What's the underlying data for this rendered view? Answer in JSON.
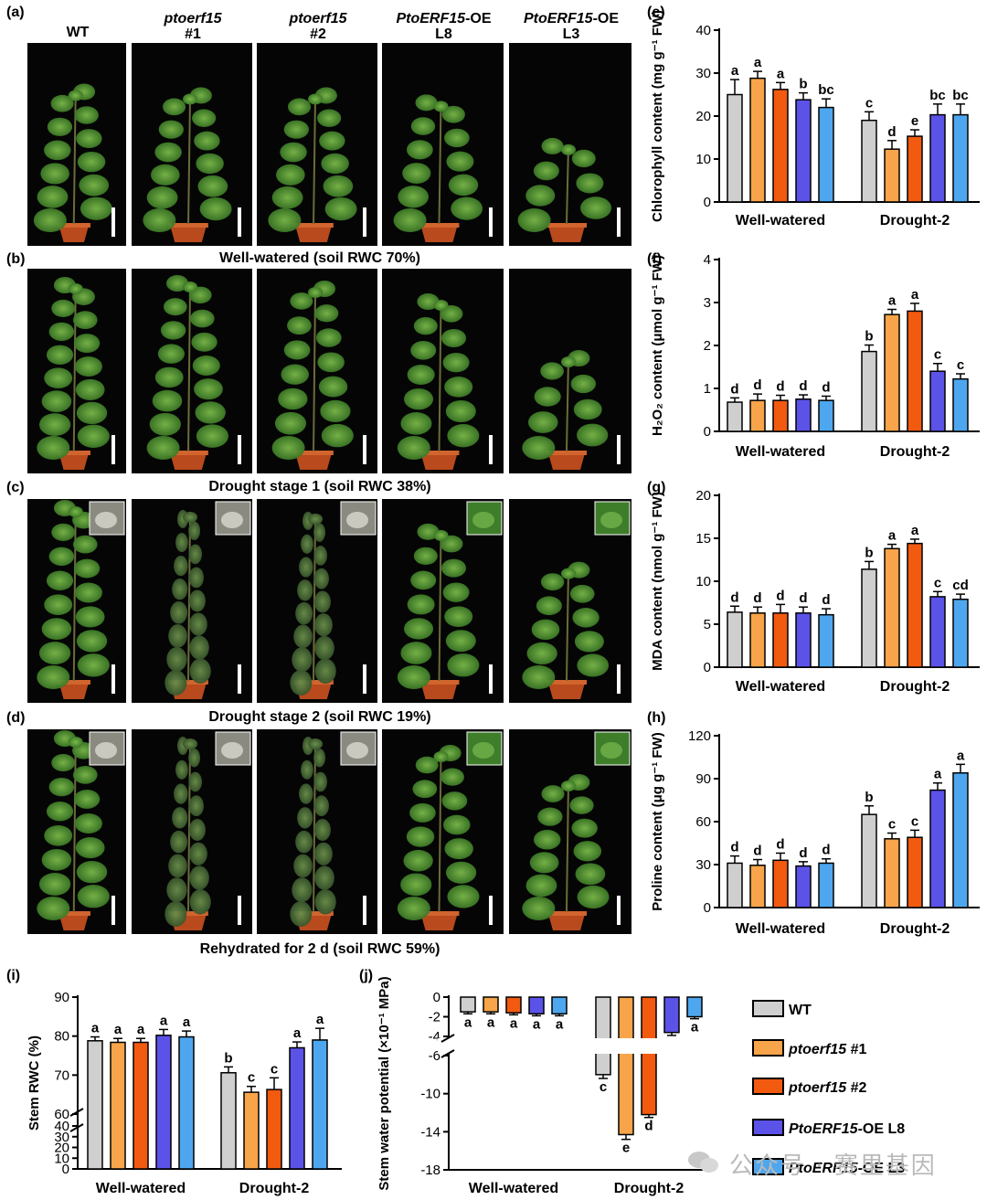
{
  "figure": {
    "panel_labels": [
      "(a)",
      "(b)",
      "(c)",
      "(d)",
      "(e)",
      "(f)",
      "(g)",
      "(h)",
      "(i)",
      "(j)"
    ],
    "column_titles": [
      {
        "line1": "WT",
        "line2": "",
        "italic": false
      },
      {
        "line1": "ptoerf15",
        "line2": "#1",
        "italic": true
      },
      {
        "line1": "ptoerf15",
        "line2": "#2",
        "italic": true
      },
      {
        "line1": "PtoERF15",
        "suffix": "-OE",
        "line2": "L8",
        "italic": true
      },
      {
        "line1": "PtoERF15",
        "suffix": "-OE",
        "line2": "L3",
        "italic": true
      }
    ],
    "row_captions": [
      "Well-watered (soil RWC 70%)",
      "Drought stage 1 (soil RWC 38%)",
      "Drought stage 2 (soil RWC 19%)",
      "Rehydrated for 2 d (soil RWC 59%)"
    ],
    "legend": [
      {
        "label": "WT",
        "italic": false,
        "color": "#cfcfcf"
      },
      {
        "label": "ptoerf15",
        "suffix": " #1",
        "italic": true,
        "color": "#f7a44a"
      },
      {
        "label": "ptoerf15",
        "suffix": " #2",
        "italic": true,
        "color": "#f25a10"
      },
      {
        "label": "PtoERF15",
        "suffix": "-OE L8",
        "italic": true,
        "color": "#5b52e8"
      },
      {
        "label": "PtoERF15",
        "suffix": "-OE L3",
        "italic": true,
        "color": "#4ea7ee"
      }
    ],
    "watermark": "公众号 · 赛里基因"
  },
  "chart_data": [
    {
      "panel": "(e)",
      "type": "bar",
      "ylabel": "Chlorophyll content (mg g⁻¹ FW)",
      "groups": [
        "Well-watered",
        "Drought-2"
      ],
      "ylim": [
        0,
        40
      ],
      "yticks": [
        0,
        10,
        20,
        30,
        40
      ],
      "series": [
        {
          "name": "WT",
          "values": [
            25,
            19
          ],
          "errors": [
            3.5,
            2
          ],
          "letters": [
            "a",
            "c"
          ]
        },
        {
          "name": "ptoerf15 #1",
          "values": [
            28.8,
            12.3
          ],
          "errors": [
            1.6,
            2
          ],
          "letters": [
            "a",
            "d"
          ]
        },
        {
          "name": "ptoerf15 #2",
          "values": [
            26.2,
            15.3
          ],
          "errors": [
            1.6,
            1.5
          ],
          "letters": [
            "a",
            "e"
          ]
        },
        {
          "name": "PtoERF15-OE L8",
          "values": [
            23.8,
            20.3
          ],
          "errors": [
            1.6,
            2.5
          ],
          "letters": [
            "b",
            "bc"
          ]
        },
        {
          "name": "PtoERF15-OE L3",
          "values": [
            22,
            20.3
          ],
          "errors": [
            2,
            2.5
          ],
          "letters": [
            "bc",
            "bc"
          ]
        }
      ]
    },
    {
      "panel": "(f)",
      "type": "bar",
      "ylabel": "H₂O₂ content (μmol g⁻¹ FW)",
      "groups": [
        "Well-watered",
        "Drought-2"
      ],
      "ylim": [
        0,
        4
      ],
      "yticks": [
        0,
        1,
        2,
        3,
        4
      ],
      "series": [
        {
          "name": "WT",
          "values": [
            0.68,
            1.86
          ],
          "errors": [
            0.1,
            0.15
          ],
          "letters": [
            "d",
            "b"
          ]
        },
        {
          "name": "ptoerf15 #1",
          "values": [
            0.72,
            2.72
          ],
          "errors": [
            0.15,
            0.12
          ],
          "letters": [
            "d",
            "a"
          ]
        },
        {
          "name": "ptoerf15 #2",
          "values": [
            0.72,
            2.8
          ],
          "errors": [
            0.12,
            0.18
          ],
          "letters": [
            "d",
            "a"
          ]
        },
        {
          "name": "PtoERF15-OE L8",
          "values": [
            0.75,
            1.4
          ],
          "errors": [
            0.1,
            0.18
          ],
          "letters": [
            "d",
            "c"
          ]
        },
        {
          "name": "PtoERF15-OE L3",
          "values": [
            0.72,
            1.22
          ],
          "errors": [
            0.1,
            0.12
          ],
          "letters": [
            "d",
            "c"
          ]
        }
      ]
    },
    {
      "panel": "(g)",
      "type": "bar",
      "ylabel": "MDA content (nmol g⁻¹ FW)",
      "groups": [
        "Well-watered",
        "Drought-2"
      ],
      "ylim": [
        0,
        20
      ],
      "yticks": [
        0,
        5,
        10,
        15,
        20
      ],
      "series": [
        {
          "name": "WT",
          "values": [
            6.4,
            11.4
          ],
          "errors": [
            0.7,
            0.9
          ],
          "letters": [
            "d",
            "b"
          ]
        },
        {
          "name": "ptoerf15 #1",
          "values": [
            6.3,
            13.8
          ],
          "errors": [
            0.7,
            0.5
          ],
          "letters": [
            "d",
            "a"
          ]
        },
        {
          "name": "ptoerf15 #2",
          "values": [
            6.3,
            14.4
          ],
          "errors": [
            1,
            0.5
          ],
          "letters": [
            "d",
            "a"
          ]
        },
        {
          "name": "PtoERF15-OE L8",
          "values": [
            6.3,
            8.2
          ],
          "errors": [
            0.7,
            0.6
          ],
          "letters": [
            "d",
            "c"
          ]
        },
        {
          "name": "PtoERF15-OE L3",
          "values": [
            6.1,
            7.9
          ],
          "errors": [
            0.7,
            0.6
          ],
          "letters": [
            "d",
            "cd"
          ]
        }
      ]
    },
    {
      "panel": "(h)",
      "type": "bar",
      "ylabel": "Proline content (μg g⁻¹ FW)",
      "groups": [
        "Well-watered",
        "Drought-2"
      ],
      "ylim": [
        0,
        120
      ],
      "yticks": [
        0,
        30,
        60,
        90,
        120
      ],
      "series": [
        {
          "name": "WT",
          "values": [
            31,
            65
          ],
          "errors": [
            5,
            6
          ],
          "letters": [
            "d",
            "b"
          ]
        },
        {
          "name": "ptoerf15 #1",
          "values": [
            29.5,
            48
          ],
          "errors": [
            4,
            4
          ],
          "letters": [
            "d",
            "c"
          ]
        },
        {
          "name": "ptoerf15 #2",
          "values": [
            33,
            49
          ],
          "errors": [
            5,
            5
          ],
          "letters": [
            "d",
            "c"
          ]
        },
        {
          "name": "PtoERF15-OE L8",
          "values": [
            29,
            82
          ],
          "errors": [
            3,
            5
          ],
          "letters": [
            "d",
            "a"
          ]
        },
        {
          "name": "PtoERF15-OE L3",
          "values": [
            31,
            94
          ],
          "errors": [
            3,
            6
          ],
          "letters": [
            "d",
            "a"
          ]
        }
      ]
    },
    {
      "panel": "(i)",
      "type": "bar",
      "ylabel": "Stem RWC (%)",
      "groups": [
        "Well-watered",
        "Drought-2"
      ],
      "ylim": [
        0,
        90
      ],
      "yticks": [
        0,
        10,
        20,
        30,
        40,
        60,
        70,
        80,
        90
      ],
      "axis_break": [
        40,
        60
      ],
      "series": [
        {
          "name": "WT",
          "values": [
            78.8,
            70.6
          ],
          "errors": [
            1,
            1.5
          ],
          "letters": [
            "a",
            "b"
          ]
        },
        {
          "name": "ptoerf15 #1",
          "values": [
            78.4,
            65.6
          ],
          "errors": [
            1,
            1.5
          ],
          "letters": [
            "a",
            "c"
          ]
        },
        {
          "name": "ptoerf15 #2",
          "values": [
            78.4,
            66.3
          ],
          "errors": [
            1,
            3
          ],
          "letters": [
            "a",
            "c"
          ]
        },
        {
          "name": "PtoERF15-OE L8",
          "values": [
            80.2,
            77
          ],
          "errors": [
            1.5,
            1.5
          ],
          "letters": [
            "a",
            "a"
          ]
        },
        {
          "name": "PtoERF15-OE L3",
          "values": [
            79.8,
            79
          ],
          "errors": [
            1.5,
            3
          ],
          "letters": [
            "a",
            "a"
          ]
        }
      ]
    },
    {
      "panel": "(j)",
      "type": "bar",
      "ylabel": "Stem water potential (×10⁻¹ MPa)",
      "groups": [
        "Well-watered",
        "Drought-2"
      ],
      "ylim": [
        -18,
        0
      ],
      "yticks": [
        0,
        -2,
        -4,
        -6,
        -10,
        -14,
        -18
      ],
      "axis_break": [
        -4,
        -6
      ],
      "series": [
        {
          "name": "WT",
          "values": [
            -1.5,
            -8
          ],
          "errors": [
            0.2,
            0.4
          ],
          "letters": [
            "a",
            "c"
          ]
        },
        {
          "name": "ptoerf15 #1",
          "values": [
            -1.5,
            -14.3
          ],
          "errors": [
            0.2,
            0.5
          ],
          "letters": [
            "a",
            "e"
          ]
        },
        {
          "name": "ptoerf15 #2",
          "values": [
            -1.6,
            -12.2
          ],
          "errors": [
            0.2,
            0.3
          ],
          "letters": [
            "a",
            "d"
          ]
        },
        {
          "name": "PtoERF15-OE L8",
          "values": [
            -1.7,
            -3.6
          ],
          "errors": [
            0.2,
            0.3
          ],
          "letters": [
            "a",
            "b"
          ]
        },
        {
          "name": "PtoERF15-OE L3",
          "values": [
            -1.7,
            -2.0
          ],
          "errors": [
            0.2,
            0.2
          ],
          "letters": [
            "a",
            "a"
          ]
        }
      ]
    }
  ]
}
